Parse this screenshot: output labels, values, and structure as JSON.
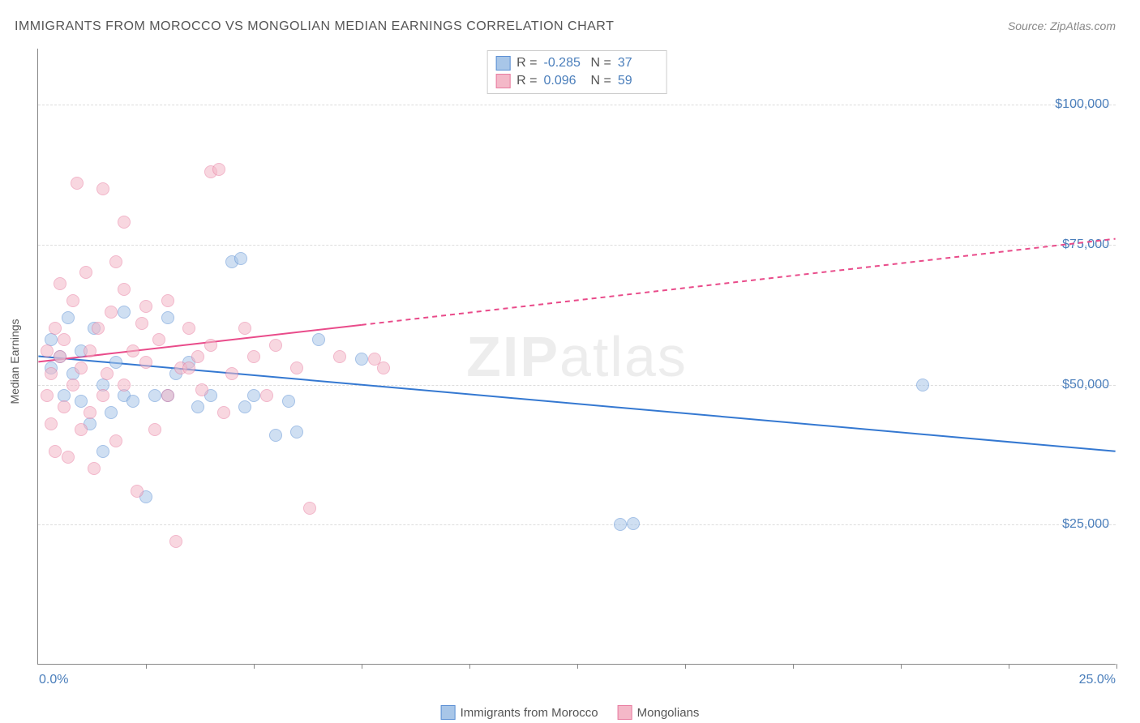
{
  "title": "IMMIGRANTS FROM MOROCCO VS MONGOLIAN MEDIAN EARNINGS CORRELATION CHART",
  "source": "Source: ZipAtlas.com",
  "watermark_left": "ZIP",
  "watermark_right": "atlas",
  "ylabel": "Median Earnings",
  "chart": {
    "type": "scatter",
    "xlim": [
      0,
      25
    ],
    "ylim": [
      0,
      110000
    ],
    "yticks": [
      {
        "value": 25000,
        "label": "$25,000"
      },
      {
        "value": 50000,
        "label": "$50,000"
      },
      {
        "value": 75000,
        "label": "$75,000"
      },
      {
        "value": 100000,
        "label": "$100,000"
      }
    ],
    "xtick_positions": [
      2.5,
      5,
      7.5,
      10,
      12.5,
      15,
      17.5,
      20,
      22.5,
      25
    ],
    "xtick_labels": {
      "left": "0.0%",
      "right": "25.0%"
    },
    "background_color": "#ffffff",
    "grid_color": "#dddddd",
    "series": [
      {
        "name": "Immigrants from Morocco",
        "fill_color": "#a8c6e8",
        "stroke_color": "#5b8fd4",
        "R": "-0.285",
        "N": "37",
        "regression": {
          "x1": 0,
          "y1": 55000,
          "x2": 25,
          "y2": 38000,
          "solid_until_x": 25,
          "line_color": "#3478d1",
          "line_width": 2
        },
        "points": [
          [
            0.3,
            53000
          ],
          [
            0.3,
            58000
          ],
          [
            0.5,
            55000
          ],
          [
            0.6,
            48000
          ],
          [
            0.7,
            62000
          ],
          [
            0.8,
            52000
          ],
          [
            1.0,
            47000
          ],
          [
            1.0,
            56000
          ],
          [
            1.2,
            43000
          ],
          [
            1.3,
            60000
          ],
          [
            1.5,
            38000
          ],
          [
            1.5,
            50000
          ],
          [
            1.7,
            45000
          ],
          [
            1.8,
            54000
          ],
          [
            2.0,
            48000
          ],
          [
            2.0,
            63000
          ],
          [
            2.2,
            47000
          ],
          [
            2.5,
            30000
          ],
          [
            2.7,
            48000
          ],
          [
            3.0,
            62000
          ],
          [
            3.0,
            48000
          ],
          [
            3.2,
            52000
          ],
          [
            3.5,
            54000
          ],
          [
            3.7,
            46000
          ],
          [
            4.0,
            48000
          ],
          [
            4.5,
            72000
          ],
          [
            4.7,
            72500
          ],
          [
            4.8,
            46000
          ],
          [
            5.0,
            48000
          ],
          [
            5.5,
            41000
          ],
          [
            5.8,
            47000
          ],
          [
            6.0,
            41500
          ],
          [
            6.5,
            58000
          ],
          [
            7.5,
            54500
          ],
          [
            13.5,
            25000
          ],
          [
            20.5,
            50000
          ],
          [
            13.8,
            25200
          ]
        ]
      },
      {
        "name": "Mongolians",
        "fill_color": "#f4b8c8",
        "stroke_color": "#e87ca0",
        "R": "0.096",
        "N": "59",
        "regression": {
          "x1": 0,
          "y1": 54000,
          "x2": 25,
          "y2": 76000,
          "solid_until_x": 7.5,
          "line_color": "#e94b8a",
          "line_width": 2
        },
        "points": [
          [
            0.2,
            48000
          ],
          [
            0.2,
            56000
          ],
          [
            0.3,
            43000
          ],
          [
            0.3,
            52000
          ],
          [
            0.4,
            60000
          ],
          [
            0.4,
            38000
          ],
          [
            0.5,
            55000
          ],
          [
            0.5,
            68000
          ],
          [
            0.6,
            46000
          ],
          [
            0.6,
            58000
          ],
          [
            0.7,
            37000
          ],
          [
            0.8,
            50000
          ],
          [
            0.8,
            65000
          ],
          [
            0.9,
            86000
          ],
          [
            1.0,
            42000
          ],
          [
            1.0,
            53000
          ],
          [
            1.1,
            70000
          ],
          [
            1.2,
            45000
          ],
          [
            1.2,
            56000
          ],
          [
            1.3,
            35000
          ],
          [
            1.4,
            60000
          ],
          [
            1.5,
            48000
          ],
          [
            1.5,
            85000
          ],
          [
            1.6,
            52000
          ],
          [
            1.7,
            63000
          ],
          [
            1.8,
            40000
          ],
          [
            1.8,
            72000
          ],
          [
            2.0,
            67000
          ],
          [
            2.0,
            50000
          ],
          [
            2.0,
            79000
          ],
          [
            2.2,
            56000
          ],
          [
            2.3,
            31000
          ],
          [
            2.5,
            54000
          ],
          [
            2.5,
            64000
          ],
          [
            2.7,
            42000
          ],
          [
            2.8,
            58000
          ],
          [
            3.0,
            48000
          ],
          [
            3.0,
            65000
          ],
          [
            3.2,
            22000
          ],
          [
            3.3,
            53000
          ],
          [
            3.5,
            60000
          ],
          [
            3.7,
            55000
          ],
          [
            3.8,
            49000
          ],
          [
            4.0,
            88000
          ],
          [
            4.2,
            88500
          ],
          [
            4.0,
            57000
          ],
          [
            4.3,
            45000
          ],
          [
            4.5,
            52000
          ],
          [
            4.8,
            60000
          ],
          [
            5.0,
            55000
          ],
          [
            5.3,
            48000
          ],
          [
            5.5,
            57000
          ],
          [
            6.0,
            53000
          ],
          [
            6.3,
            28000
          ],
          [
            7.0,
            55000
          ],
          [
            7.8,
            54500
          ],
          [
            8.0,
            53000
          ],
          [
            3.5,
            53000
          ],
          [
            2.4,
            61000
          ]
        ]
      }
    ]
  },
  "legend_items": [
    {
      "label": "Immigrants from Morocco",
      "fill": "#a8c6e8",
      "stroke": "#5b8fd4"
    },
    {
      "label": "Mongolians",
      "fill": "#f4b8c8",
      "stroke": "#e87ca0"
    }
  ]
}
